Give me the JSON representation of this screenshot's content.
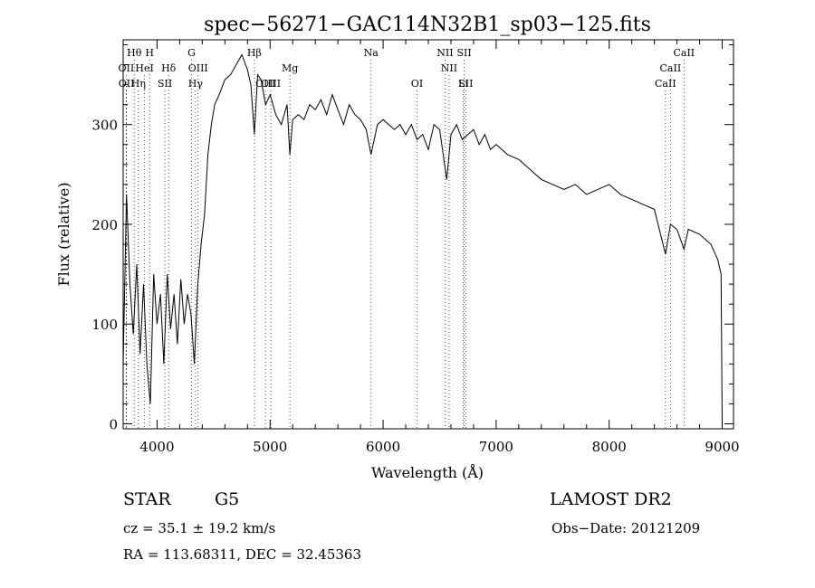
{
  "chart_data": {
    "type": "line",
    "title": "spec−56271−GAC114N32B1_sp03−125.fits",
    "xlabel": "Wavelength (Å)",
    "ylabel": "Flux (relative)",
    "xlim": [
      3700,
      9100
    ],
    "ylim": [
      -5,
      385
    ],
    "xticks": [
      4000,
      5000,
      6000,
      7000,
      8000,
      9000
    ],
    "yticks": [
      0,
      100,
      200,
      300
    ],
    "grid": false,
    "series": [
      {
        "x": [
          3700,
          3730,
          3760,
          3790,
          3820,
          3850,
          3880,
          3910,
          3940,
          3970,
          4000,
          4030,
          4060,
          4090,
          4120,
          4150,
          4180,
          4210,
          4240,
          4270,
          4300,
          4330,
          4360,
          4390,
          4420,
          4450,
          4480,
          4510,
          4550,
          4600,
          4650,
          4700,
          4750,
          4800,
          4830,
          4861,
          4890,
          4920,
          4960,
          5000,
          5050,
          5100,
          5150,
          5175,
          5200,
          5250,
          5300,
          5350,
          5400,
          5450,
          5500,
          5550,
          5600,
          5650,
          5700,
          5750,
          5800,
          5850,
          5893,
          5950,
          6000,
          6050,
          6100,
          6150,
          6200,
          6250,
          6300,
          6350,
          6400,
          6450,
          6500,
          6563,
          6600,
          6650,
          6700,
          6750,
          6800,
          6850,
          6900,
          6950,
          7000,
          7100,
          7200,
          7300,
          7400,
          7500,
          7600,
          7700,
          7800,
          7900,
          8000,
          8100,
          8200,
          8300,
          8400,
          8498,
          8542,
          8600,
          8662,
          8700,
          8800,
          8900,
          8960,
          8990,
          9000
        ],
        "y": [
          60,
          230,
          140,
          90,
          160,
          70,
          140,
          60,
          20,
          150,
          100,
          130,
          60,
          150,
          95,
          130,
          80,
          145,
          100,
          130,
          110,
          60,
          140,
          180,
          210,
          270,
          300,
          320,
          330,
          345,
          350,
          360,
          370,
          355,
          340,
          290,
          350,
          345,
          320,
          330,
          310,
          300,
          320,
          270,
          305,
          310,
          305,
          320,
          315,
          325,
          310,
          330,
          315,
          300,
          320,
          310,
          305,
          295,
          270,
          300,
          305,
          300,
          295,
          300,
          290,
          300,
          285,
          290,
          275,
          300,
          295,
          245,
          290,
          300,
          285,
          290,
          295,
          280,
          290,
          275,
          280,
          270,
          265,
          255,
          245,
          240,
          235,
          240,
          230,
          235,
          240,
          230,
          225,
          220,
          215,
          170,
          200,
          195,
          175,
          195,
          190,
          180,
          165,
          150,
          0
        ]
      }
    ],
    "lines": [
      {
        "name": "Hθ",
        "x": 3798,
        "row": 0
      },
      {
        "name": "H",
        "x": 3934,
        "row": 0
      },
      {
        "name": "G",
        "x": 4305,
        "row": 0
      },
      {
        "name": "Hβ",
        "x": 4861,
        "row": 0
      },
      {
        "name": "Na",
        "x": 5893,
        "row": 0
      },
      {
        "name": "NII",
        "x": 6548,
        "row": 0
      },
      {
        "name": "SII",
        "x": 6717,
        "row": 0
      },
      {
        "name": "CaII",
        "x": 8662,
        "row": 0
      },
      {
        "name": "OII",
        "x": 3727,
        "row": 1
      },
      {
        "name": "HeI",
        "x": 3889,
        "row": 1
      },
      {
        "name": "Hδ",
        "x": 4102,
        "row": 1
      },
      {
        "name": "OIII",
        "x": 4363,
        "row": 1
      },
      {
        "name": "Mg",
        "x": 5175,
        "row": 1
      },
      {
        "name": "NII",
        "x": 6584,
        "row": 1
      },
      {
        "name": "CaII",
        "x": 8542,
        "row": 1
      },
      {
        "name": "OII",
        "x": 3729,
        "row": 2
      },
      {
        "name": "Hη",
        "x": 3835,
        "row": 2
      },
      {
        "name": "SII",
        "x": 4069,
        "row": 2
      },
      {
        "name": "Hγ",
        "x": 4340,
        "row": 2
      },
      {
        "name": "OI",
        "x": 6300,
        "row": 2
      },
      {
        "name": "SII",
        "x": 6731,
        "row": 2
      },
      {
        "name": "Li",
        "x": 6708,
        "row": 2
      },
      {
        "name": "CaII",
        "x": 8498,
        "row": 2
      },
      {
        "name": "OIII",
        "x": 4959,
        "row": 2
      },
      {
        "name": "OIII",
        "x": 5007,
        "row": 2
      }
    ]
  },
  "info": {
    "class": "STAR",
    "subclass": "G5",
    "survey": "LAMOST DR2",
    "cz": "cz = 35.1 ± 19.2 km/s",
    "obsdate": "Obs−Date: 20121209",
    "radec": "RA = 113.68311, DEC =  32.45363"
  }
}
